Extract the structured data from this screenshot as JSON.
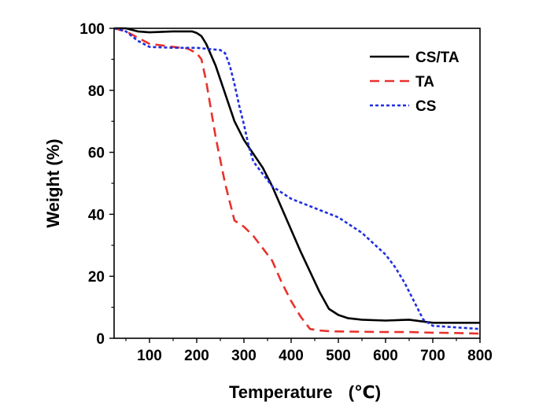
{
  "chart_data": {
    "type": "line",
    "title": "",
    "xlabel": "Temperature",
    "xlabel_unit": "(℃)",
    "ylabel": "Weight (%)",
    "xlim": [
      25,
      800
    ],
    "ylim": [
      0,
      100
    ],
    "xticks": [
      100,
      200,
      300,
      400,
      500,
      600,
      700,
      800
    ],
    "yticks": [
      0,
      20,
      40,
      60,
      80,
      100
    ],
    "grid": false,
    "legend_position": "top-right",
    "series": [
      {
        "name": "CS/TA",
        "color": "#000000",
        "style": "solid",
        "x": [
          25,
          50,
          75,
          100,
          150,
          190,
          200,
          210,
          220,
          240,
          260,
          280,
          300,
          320,
          340,
          360,
          380,
          400,
          420,
          440,
          460,
          480,
          500,
          520,
          550,
          600,
          650,
          700,
          750,
          800
        ],
        "y": [
          100,
          100,
          99,
          98.7,
          99,
          99,
          98.5,
          97.5,
          95,
          88,
          79,
          70,
          64,
          59.5,
          55,
          49,
          42,
          35,
          28,
          21.5,
          15,
          9.5,
          7.5,
          6.5,
          6,
          5.7,
          6,
          5,
          5,
          5
        ]
      },
      {
        "name": "TA",
        "color": "#e8322c",
        "style": "dashed",
        "x": [
          25,
          50,
          75,
          100,
          150,
          180,
          200,
          210,
          220,
          240,
          260,
          280,
          300,
          320,
          340,
          360,
          380,
          400,
          420,
          440,
          460,
          480,
          500,
          550,
          600,
          650,
          700,
          750,
          800
        ],
        "y": [
          100,
          99,
          97,
          95,
          94,
          93.5,
          92,
          90,
          83,
          65,
          50,
          38,
          36,
          33,
          29,
          25,
          18,
          12,
          7,
          3,
          2.5,
          2.3,
          2.2,
          2.1,
          2,
          2,
          1.8,
          1.7,
          1.5
        ]
      },
      {
        "name": "CS",
        "color": "#1f2fe0",
        "style": "dotted",
        "x": [
          25,
          50,
          75,
          100,
          150,
          200,
          250,
          260,
          270,
          280,
          290,
          300,
          310,
          320,
          340,
          360,
          400,
          450,
          500,
          550,
          600,
          620,
          640,
          660,
          680,
          700,
          750,
          800
        ],
        "y": [
          100,
          99,
          96,
          94,
          93.7,
          93.7,
          93,
          92,
          88,
          82,
          75,
          69,
          62,
          57,
          53,
          49,
          45,
          42,
          39,
          34,
          27,
          23,
          18,
          12,
          6,
          4,
          3.5,
          3
        ]
      }
    ]
  }
}
